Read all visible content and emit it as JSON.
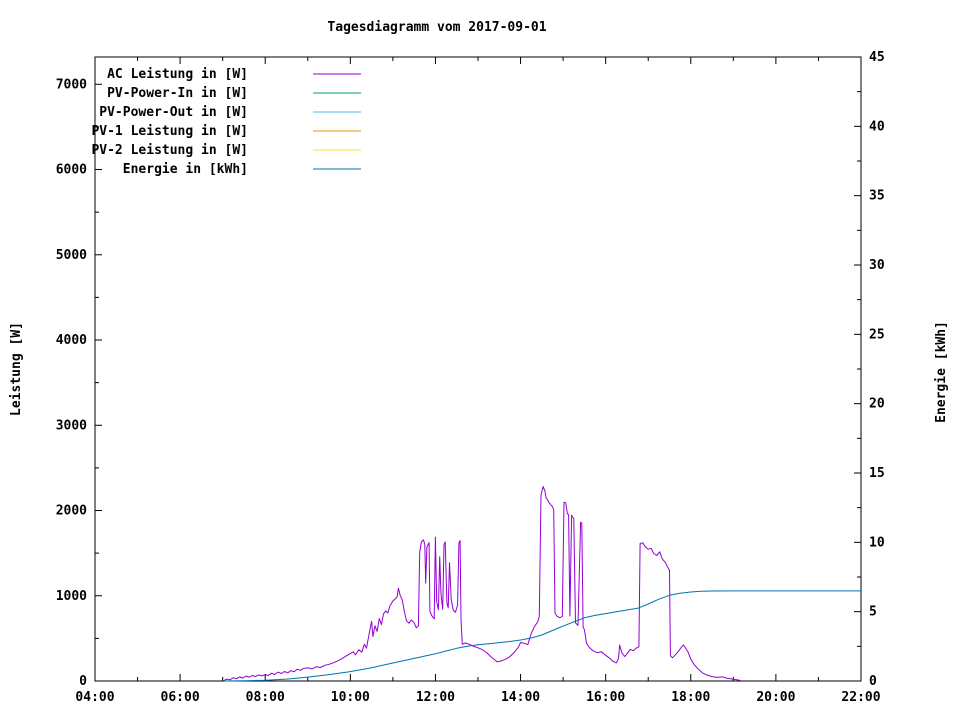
{
  "chart_data": {
    "type": "line",
    "title": "Tagesdiagramm vom 2017-09-01",
    "grid": false,
    "legend_position": "top-left-inside",
    "x_axis": {
      "start_hour": 4,
      "end_hour": 22,
      "major_tick_hours": [
        4,
        6,
        8,
        10,
        12,
        14,
        16,
        18,
        20,
        22
      ],
      "major_tick_labels": [
        "04:00",
        "06:00",
        "08:00",
        "10:00",
        "12:00",
        "14:00",
        "16:00",
        "18:00",
        "20:00",
        "22:00"
      ],
      "minor_tick_hours": [
        5,
        7,
        9,
        11,
        13,
        15,
        17,
        19,
        21
      ]
    },
    "y_left": {
      "title": "Leistung [W]",
      "range": [
        0,
        7320
      ],
      "major_ticks": [
        0,
        1000,
        2000,
        3000,
        4000,
        5000,
        6000,
        7000
      ],
      "major_tick_labels": [
        "0",
        "1000",
        "2000",
        "3000",
        "4000",
        "5000",
        "6000",
        "7000"
      ],
      "minor_ticks": [
        500,
        1500,
        2500,
        3500,
        4500,
        5500,
        6500
      ]
    },
    "y_right": {
      "title": "Energie [kWh]",
      "range": [
        0,
        45
      ],
      "major_ticks": [
        0,
        5,
        10,
        15,
        20,
        25,
        30,
        35,
        40,
        45
      ],
      "major_tick_labels": [
        "0",
        "5",
        "10",
        "15",
        "20",
        "25",
        "30",
        "35",
        "40",
        "45"
      ],
      "minor_ticks": [
        2.5,
        7.5,
        12.5,
        17.5,
        22.5,
        27.5,
        32.5,
        37.5,
        42.5
      ]
    },
    "series": [
      {
        "name": "AC Leistung in [W]",
        "color": "#9400d3",
        "axis": "left",
        "points": [
          [
            7.03,
            5
          ],
          [
            7.1,
            22
          ],
          [
            7.17,
            14
          ],
          [
            7.25,
            38
          ],
          [
            7.32,
            26
          ],
          [
            7.4,
            48
          ],
          [
            7.47,
            34
          ],
          [
            7.55,
            58
          ],
          [
            7.62,
            44
          ],
          [
            7.7,
            66
          ],
          [
            7.77,
            52
          ],
          [
            7.85,
            72
          ],
          [
            7.92,
            60
          ],
          [
            8.0,
            76
          ],
          [
            8.07,
            64
          ],
          [
            8.15,
            92
          ],
          [
            8.22,
            76
          ],
          [
            8.3,
            104
          ],
          [
            8.38,
            88
          ],
          [
            8.45,
            112
          ],
          [
            8.53,
            96
          ],
          [
            8.6,
            122
          ],
          [
            8.68,
            108
          ],
          [
            8.75,
            138
          ],
          [
            8.83,
            126
          ],
          [
            8.9,
            148
          ],
          [
            9.0,
            154
          ],
          [
            9.1,
            142
          ],
          [
            9.2,
            168
          ],
          [
            9.3,
            158
          ],
          [
            9.4,
            184
          ],
          [
            9.5,
            196
          ],
          [
            9.6,
            214
          ],
          [
            9.7,
            236
          ],
          [
            9.8,
            262
          ],
          [
            9.9,
            292
          ],
          [
            10.0,
            322
          ],
          [
            10.07,
            342
          ],
          [
            10.12,
            306
          ],
          [
            10.2,
            366
          ],
          [
            10.27,
            338
          ],
          [
            10.33,
            432
          ],
          [
            10.38,
            386
          ],
          [
            10.45,
            576
          ],
          [
            10.5,
            700
          ],
          [
            10.53,
            522
          ],
          [
            10.58,
            648
          ],
          [
            10.63,
            582
          ],
          [
            10.68,
            732
          ],
          [
            10.73,
            662
          ],
          [
            10.78,
            788
          ],
          [
            10.83,
            822
          ],
          [
            10.88,
            798
          ],
          [
            10.93,
            880
          ],
          [
            11.0,
            938
          ],
          [
            11.05,
            962
          ],
          [
            11.1,
            986
          ],
          [
            11.13,
            1088
          ],
          [
            11.17,
            1008
          ],
          [
            11.22,
            948
          ],
          [
            11.27,
            812
          ],
          [
            11.32,
            706
          ],
          [
            11.38,
            678
          ],
          [
            11.43,
            716
          ],
          [
            11.5,
            682
          ],
          [
            11.55,
            624
          ],
          [
            11.6,
            646
          ],
          [
            11.63,
            1512
          ],
          [
            11.67,
            1632
          ],
          [
            11.72,
            1656
          ],
          [
            11.75,
            1598
          ],
          [
            11.77,
            1148
          ],
          [
            11.8,
            1572
          ],
          [
            11.85,
            1624
          ],
          [
            11.87,
            818
          ],
          [
            11.92,
            762
          ],
          [
            11.97,
            728
          ],
          [
            12.0,
            1688
          ],
          [
            12.03,
            928
          ],
          [
            12.07,
            836
          ],
          [
            12.1,
            1458
          ],
          [
            12.13,
            1018
          ],
          [
            12.17,
            842
          ],
          [
            12.2,
            1604
          ],
          [
            12.23,
            1632
          ],
          [
            12.27,
            918
          ],
          [
            12.3,
            858
          ],
          [
            12.33,
            1388
          ],
          [
            12.37,
            958
          ],
          [
            12.42,
            828
          ],
          [
            12.47,
            806
          ],
          [
            12.52,
            892
          ],
          [
            12.55,
            1618
          ],
          [
            12.58,
            1648
          ],
          [
            12.6,
            718
          ],
          [
            12.63,
            432
          ],
          [
            12.7,
            446
          ],
          [
            12.8,
            430
          ],
          [
            12.9,
            406
          ],
          [
            13.0,
            390
          ],
          [
            13.1,
            368
          ],
          [
            13.2,
            334
          ],
          [
            13.3,
            286
          ],
          [
            13.4,
            246
          ],
          [
            13.45,
            224
          ],
          [
            13.55,
            236
          ],
          [
            13.65,
            256
          ],
          [
            13.75,
            286
          ],
          [
            13.85,
            336
          ],
          [
            13.95,
            396
          ],
          [
            14.0,
            452
          ],
          [
            14.08,
            444
          ],
          [
            14.17,
            426
          ],
          [
            14.25,
            556
          ],
          [
            14.33,
            642
          ],
          [
            14.4,
            692
          ],
          [
            14.44,
            758
          ],
          [
            14.48,
            2182
          ],
          [
            14.53,
            2282
          ],
          [
            14.57,
            2232
          ],
          [
            14.6,
            2152
          ],
          [
            14.63,
            2128
          ],
          [
            14.67,
            2092
          ],
          [
            14.72,
            2062
          ],
          [
            14.75,
            2046
          ],
          [
            14.78,
            2008
          ],
          [
            14.81,
            796
          ],
          [
            14.85,
            764
          ],
          [
            14.92,
            742
          ],
          [
            14.98,
            756
          ],
          [
            15.02,
            2098
          ],
          [
            15.06,
            2092
          ],
          [
            15.1,
            1964
          ],
          [
            15.13,
            1948
          ],
          [
            15.16,
            762
          ],
          [
            15.2,
            1944
          ],
          [
            15.25,
            1902
          ],
          [
            15.29,
            682
          ],
          [
            15.35,
            652
          ],
          [
            15.41,
            1862
          ],
          [
            15.44,
            1854
          ],
          [
            15.47,
            634
          ],
          [
            15.5,
            602
          ],
          [
            15.55,
            442
          ],
          [
            15.62,
            392
          ],
          [
            15.7,
            356
          ],
          [
            15.8,
            332
          ],
          [
            15.9,
            342
          ],
          [
            16.0,
            302
          ],
          [
            16.08,
            272
          ],
          [
            16.17,
            232
          ],
          [
            16.25,
            212
          ],
          [
            16.3,
            262
          ],
          [
            16.33,
            422
          ],
          [
            16.38,
            332
          ],
          [
            16.45,
            286
          ],
          [
            16.52,
            332
          ],
          [
            16.58,
            372
          ],
          [
            16.65,
            356
          ],
          [
            16.72,
            386
          ],
          [
            16.78,
            402
          ],
          [
            16.81,
            1612
          ],
          [
            16.87,
            1622
          ],
          [
            16.93,
            1576
          ],
          [
            17.0,
            1546
          ],
          [
            17.07,
            1556
          ],
          [
            17.13,
            1496
          ],
          [
            17.2,
            1472
          ],
          [
            17.27,
            1516
          ],
          [
            17.33,
            1432
          ],
          [
            17.4,
            1392
          ],
          [
            17.45,
            1342
          ],
          [
            17.5,
            1298
          ],
          [
            17.52,
            296
          ],
          [
            17.57,
            272
          ],
          [
            17.63,
            302
          ],
          [
            17.7,
            342
          ],
          [
            17.79,
            402
          ],
          [
            17.83,
            422
          ],
          [
            17.87,
            392
          ],
          [
            17.93,
            346
          ],
          [
            18.0,
            256
          ],
          [
            18.08,
            192
          ],
          [
            18.17,
            142
          ],
          [
            18.27,
            96
          ],
          [
            18.37,
            72
          ],
          [
            18.5,
            52
          ],
          [
            18.62,
            42
          ],
          [
            18.75,
            48
          ],
          [
            18.85,
            32
          ],
          [
            18.97,
            24
          ],
          [
            19.08,
            14
          ],
          [
            19.17,
            6
          ]
        ]
      },
      {
        "name": "PV-Power-In in [W]",
        "color": "#009e73",
        "axis": "left",
        "points": []
      },
      {
        "name": "PV-Power-Out in [W]",
        "color": "#56b4e9",
        "axis": "left",
        "points": []
      },
      {
        "name": "PV-1 Leistung in [W]",
        "color": "#e69f00",
        "axis": "left",
        "points": []
      },
      {
        "name": "PV-2 Leistung in [W]",
        "color": "#f0e442",
        "axis": "left",
        "points": []
      },
      {
        "name": "Energie in [kWh]",
        "color": "#0072b2",
        "axis": "right",
        "points": [
          [
            7.03,
            0
          ],
          [
            7.5,
            0.02
          ],
          [
            8.0,
            0.06
          ],
          [
            8.5,
            0.14
          ],
          [
            9.0,
            0.28
          ],
          [
            9.5,
            0.46
          ],
          [
            10.0,
            0.68
          ],
          [
            10.5,
            0.96
          ],
          [
            11.0,
            1.3
          ],
          [
            11.5,
            1.63
          ],
          [
            12.0,
            1.96
          ],
          [
            12.25,
            2.16
          ],
          [
            12.5,
            2.36
          ],
          [
            12.75,
            2.5
          ],
          [
            13.0,
            2.61
          ],
          [
            13.25,
            2.69
          ],
          [
            13.5,
            2.77
          ],
          [
            13.75,
            2.85
          ],
          [
            14.0,
            2.96
          ],
          [
            14.25,
            3.1
          ],
          [
            14.5,
            3.32
          ],
          [
            14.75,
            3.64
          ],
          [
            15.0,
            3.96
          ],
          [
            15.25,
            4.26
          ],
          [
            15.5,
            4.56
          ],
          [
            15.75,
            4.73
          ],
          [
            16.0,
            4.86
          ],
          [
            16.25,
            4.99
          ],
          [
            16.5,
            5.12
          ],
          [
            16.75,
            5.24
          ],
          [
            17.0,
            5.55
          ],
          [
            17.25,
            5.9
          ],
          [
            17.5,
            6.18
          ],
          [
            17.75,
            6.33
          ],
          [
            18.0,
            6.42
          ],
          [
            18.25,
            6.47
          ],
          [
            18.5,
            6.49
          ],
          [
            19.0,
            6.5
          ],
          [
            20.0,
            6.5
          ],
          [
            21.0,
            6.5
          ],
          [
            22.0,
            6.5
          ]
        ]
      }
    ]
  }
}
